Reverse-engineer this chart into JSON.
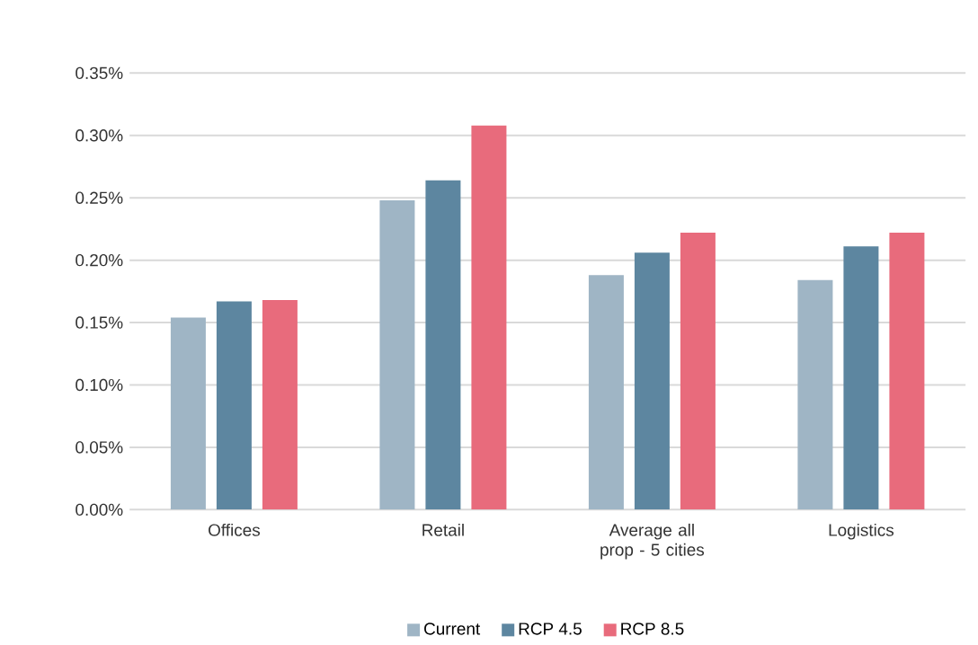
{
  "chart_data": {
    "type": "bar",
    "categories": [
      "Offices",
      "Retail",
      "Average all prop - 5 cities",
      "Logistics"
    ],
    "series": [
      {
        "name": "Current",
        "color": "#9fb5c5",
        "values": [
          0.154,
          0.248,
          0.188,
          0.184
        ]
      },
      {
        "name": "RCP 4.5",
        "color": "#5d86a0",
        "values": [
          0.167,
          0.264,
          0.206,
          0.211
        ]
      },
      {
        "name": "RCP 8.5",
        "color": "#e86b7c",
        "values": [
          0.168,
          0.308,
          0.222,
          0.222
        ]
      }
    ],
    "ylim": [
      0,
      0.35
    ],
    "yticks": [
      {
        "value": 0,
        "label": "0.00%"
      },
      {
        "value": 0.05,
        "label": "0.05%"
      },
      {
        "value": 0.1,
        "label": "0.10%"
      },
      {
        "value": 0.15,
        "label": "0.15%"
      },
      {
        "value": 0.2,
        "label": "0.20%"
      },
      {
        "value": 0.25,
        "label": "0.25%"
      },
      {
        "value": 0.3,
        "label": "0.30%"
      },
      {
        "value": 0.35,
        "label": "0.35%"
      }
    ],
    "grid": "y",
    "legend": "bottom"
  }
}
